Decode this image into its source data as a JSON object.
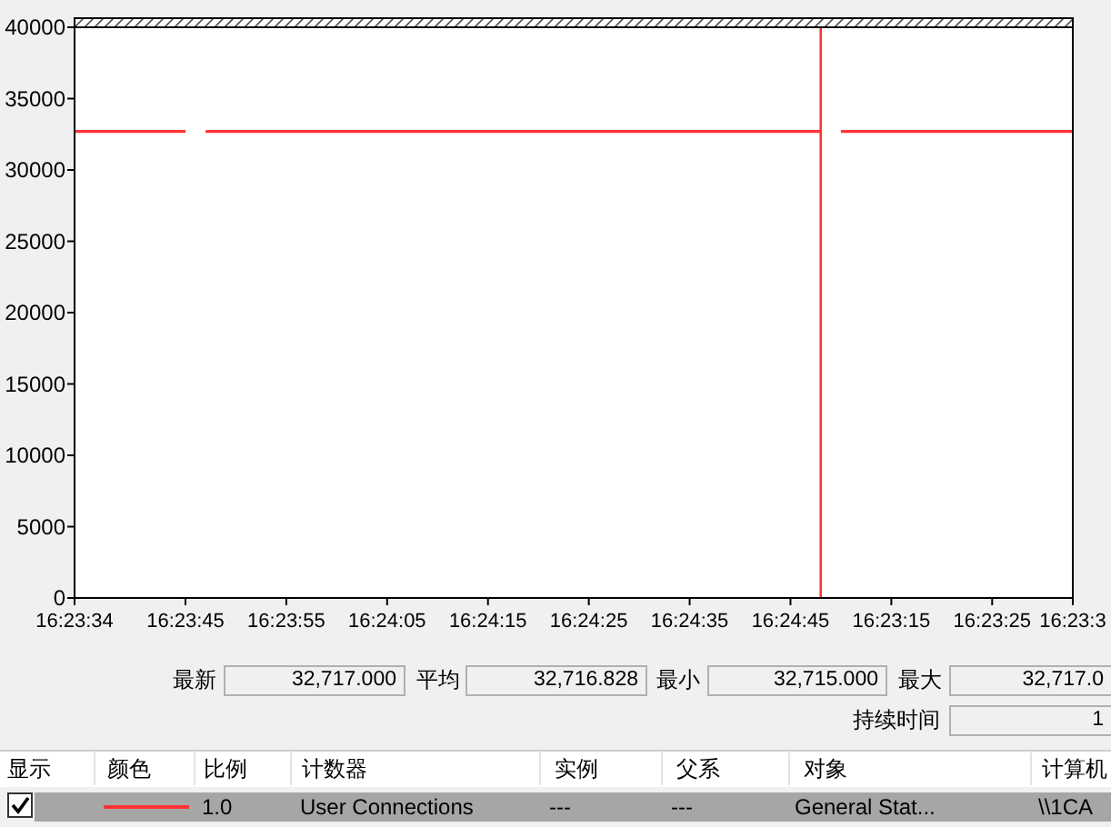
{
  "chart_data": {
    "type": "line",
    "categories": [
      "16:23:34",
      null,
      null,
      null,
      null,
      null,
      null,
      null,
      null,
      null,
      null,
      "16:23:45",
      null,
      null,
      null,
      null,
      null,
      null,
      null,
      null,
      null,
      "16:23:55",
      null,
      null,
      null,
      null,
      null,
      null,
      null,
      null,
      null,
      "16:24:05",
      null,
      null,
      null,
      null,
      null,
      null,
      null,
      null,
      null,
      "16:24:15",
      null,
      null,
      null,
      null,
      null,
      null,
      null,
      null,
      null,
      "16:24:25",
      null,
      null,
      null,
      null,
      null,
      null,
      null,
      null,
      null,
      "16:24:35",
      null,
      null,
      null,
      null,
      null,
      null,
      null,
      null,
      null,
      "16:24:45",
      null,
      null,
      null,
      null,
      null,
      null,
      null,
      null,
      null,
      "16:23:15",
      null,
      null,
      null,
      null,
      null,
      null,
      null,
      null,
      null,
      "16:23:25",
      null,
      null,
      null,
      null,
      null,
      null,
      null,
      "16:23:3"
    ],
    "series": [
      {
        "name": "User Connections",
        "color": "#ff3333",
        "values": [
          32700,
          32700,
          32700,
          32700,
          32700,
          32700,
          32700,
          32700,
          32700,
          32700,
          32700,
          32700,
          null,
          32700,
          32700,
          32700,
          32700,
          32700,
          32700,
          32700,
          32700,
          32700,
          32700,
          32700,
          32700,
          32700,
          32700,
          32700,
          32700,
          32700,
          32700,
          32700,
          32700,
          32700,
          32700,
          32700,
          32700,
          32700,
          32700,
          32700,
          32700,
          32700,
          32700,
          32700,
          32700,
          32700,
          32700,
          32700,
          32700,
          32700,
          32700,
          32700,
          32700,
          32700,
          32700,
          32700,
          32700,
          32700,
          32700,
          32700,
          32700,
          32700,
          32700,
          32700,
          32700,
          32700,
          32700,
          32700,
          32700,
          32700,
          32700,
          32700,
          32700,
          32700,
          32700,
          null,
          32700,
          32700,
          32700,
          32700,
          32700,
          32700,
          32700,
          32700,
          32700,
          32700,
          32700,
          32700,
          32700,
          32700,
          32700,
          32700,
          32700,
          32700,
          32700,
          32700,
          32700,
          32700,
          32700,
          32700
        ]
      }
    ],
    "ylim": [
      0,
      40000
    ],
    "yticks": [
      0,
      5000,
      10000,
      15000,
      20000,
      25000,
      30000,
      35000,
      40000
    ],
    "legend": "bottom",
    "annotations": [
      "最新",
      "32,717.000",
      "平均",
      "32,716.828",
      "最小",
      "32,715.000",
      "最大",
      "32,717.0",
      "持续时间",
      "1",
      "显示",
      "颜色",
      "比例",
      "计数器",
      "实例",
      "父系",
      "对象",
      "计算机",
      "1.0",
      "---",
      "---",
      "General Stat...",
      "\\\\1CA"
    ]
  }
}
